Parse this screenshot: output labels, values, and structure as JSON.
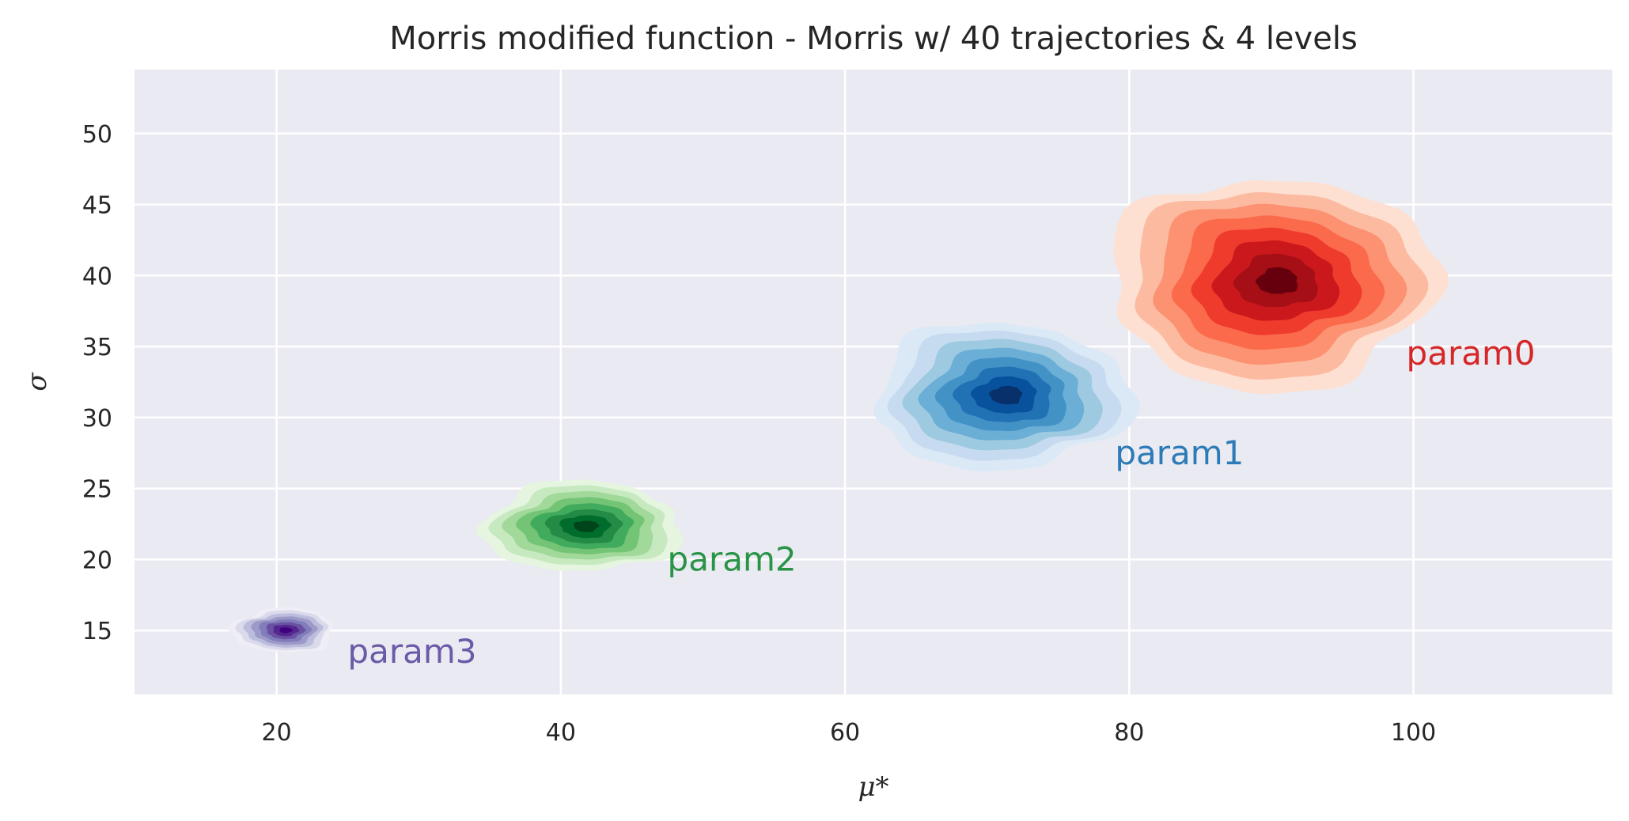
{
  "chart_data": {
    "type": "kde-contour",
    "title": "Morris modified function - Morris w/ 40 trajectories & 4 levels",
    "xlabel": "μ*",
    "ylabel": "σ",
    "xlim": [
      10,
      114
    ],
    "ylim": [
      10.5,
      54.5
    ],
    "xticks": [
      20,
      40,
      60,
      80,
      100
    ],
    "yticks": [
      15,
      20,
      25,
      30,
      35,
      40,
      45,
      50
    ],
    "grid": true,
    "series": [
      {
        "name": "param0",
        "palette": "Reds",
        "center": [
          90,
          39.5
        ],
        "spread": [
          11.5,
          7.5
        ],
        "label_pos": [
          99.5,
          34.5
        ],
        "colors": [
          "#fee0d2",
          "#fcbba1",
          "#fc9272",
          "#fb6a4a",
          "#ef3b2c",
          "#cb181d",
          "#a50f15",
          "#67000d"
        ]
      },
      {
        "name": "param1",
        "palette": "Blues",
        "center": [
          71,
          31.5
        ],
        "spread": [
          9,
          5.2
        ],
        "label_pos": [
          79,
          27.5
        ],
        "colors": [
          "#dbe9f6",
          "#c6dbef",
          "#9ecae1",
          "#6baed6",
          "#4292c6",
          "#2171b5",
          "#08519c",
          "#08306b"
        ]
      },
      {
        "name": "param2",
        "palette": "Greens",
        "center": [
          41.5,
          22.3
        ],
        "spread": [
          7,
          3.2
        ],
        "label_pos": [
          47.5,
          20
        ],
        "colors": [
          "#e5f5e0",
          "#c7e9c0",
          "#a1d99b",
          "#74c476",
          "#41ab5d",
          "#238b45",
          "#006d2c",
          "#00441b"
        ]
      },
      {
        "name": "param3",
        "palette": "Purples",
        "center": [
          20.5,
          15
        ],
        "spread": [
          3.6,
          1.6
        ],
        "label_pos": [
          25,
          13.5
        ],
        "colors": [
          "#efedf5",
          "#dadaeb",
          "#bcbddc",
          "#9e9ac8",
          "#807dba",
          "#6a51a3",
          "#54278f",
          "#3f007d"
        ]
      }
    ],
    "label_colors": {
      "param0": "#d62728",
      "param1": "#2c7bb6",
      "param2": "#2a9446",
      "param3": "#6a5aa8"
    }
  }
}
